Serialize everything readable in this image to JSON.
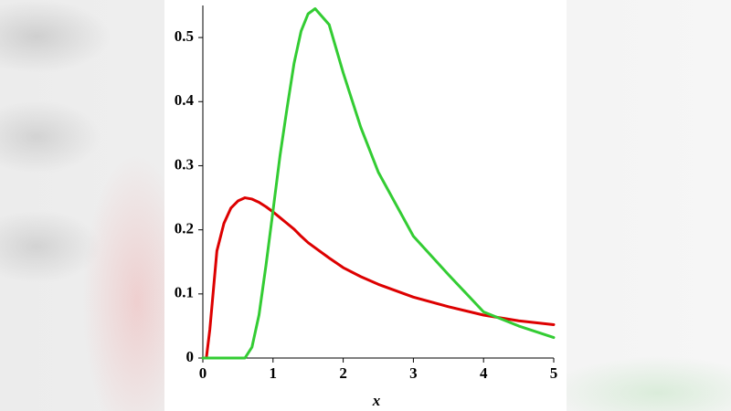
{
  "chart_data": {
    "type": "line",
    "xlabel": "x",
    "x": [
      0,
      0.05,
      0.1,
      0.2,
      0.3,
      0.4,
      0.5,
      0.6,
      0.7,
      0.8,
      0.9,
      1,
      1.1,
      1.2,
      1.3,
      1.4,
      1.5,
      1.6,
      1.8,
      2,
      2.25,
      2.5,
      3,
      3.5,
      4,
      4.5,
      5
    ],
    "series": [
      {
        "color": "#dd0000",
        "values": [
          0,
          0,
          0.045,
          0.167,
          0.21,
          0.234,
          0.245,
          0.25,
          0.248,
          0.243,
          0.236,
          0.228,
          0.219,
          0.21,
          0.201,
          0.19,
          0.18,
          0.172,
          0.156,
          0.141,
          0.127,
          0.115,
          0.095,
          0.08,
          0.067,
          0.058,
          0.052
        ]
      },
      {
        "color": "#33cc33",
        "values": [
          0,
          0,
          0,
          0,
          0,
          0,
          0,
          0,
          0.017,
          0.067,
          0.145,
          0.23,
          0.316,
          0.39,
          0.46,
          0.51,
          0.537,
          0.545,
          0.52,
          0.445,
          0.36,
          0.29,
          0.19,
          0.13,
          0.072,
          0.05,
          0.032
        ]
      }
    ],
    "xlim": [
      0,
      5
    ],
    "ylim": [
      0,
      0.55
    ],
    "xticks": [
      0,
      1,
      2,
      3,
      4,
      5
    ],
    "yticks": [
      0,
      0.1,
      0.2,
      0.3,
      0.4,
      0.5
    ]
  }
}
